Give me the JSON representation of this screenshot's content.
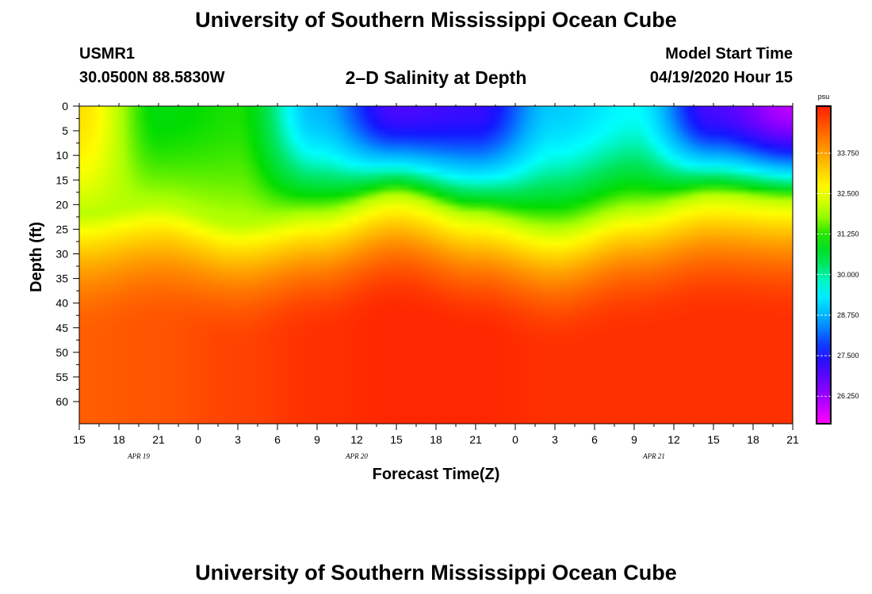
{
  "header": {
    "top_title": "University of Southern Mississippi Ocean Cube",
    "bottom_title": "University of Southern Mississippi Ocean Cube",
    "station_id": "USMR1",
    "station_coords": "30.0500N 88.5830W",
    "plot_title": "2–D Salinity at Depth",
    "model_start_label": "Model Start Time",
    "model_start_value": "04/19/2020 Hour 15"
  },
  "chart_data": {
    "type": "heatmap",
    "title": "2–D Salinity at Depth",
    "xlabel": "Forecast Time(Z)",
    "ylabel": "Depth (ft)",
    "x_unit": "hours since 04/19/2020 15Z",
    "xlim": [
      0,
      54
    ],
    "ylim": [
      0,
      64.5
    ],
    "y_ticks": [
      0,
      5,
      10,
      15,
      20,
      25,
      30,
      35,
      40,
      45,
      50,
      55,
      60
    ],
    "y_tick_labels": [
      "0",
      "5",
      "10",
      "15",
      "20",
      "25",
      "30",
      "35",
      "40",
      "45",
      "50",
      "55",
      "60"
    ],
    "x_ticks": [
      0,
      3,
      6,
      9,
      12,
      15,
      18,
      21,
      24,
      27,
      30,
      33,
      36,
      39,
      42,
      45,
      48,
      51,
      54
    ],
    "x_tick_labels": [
      "15",
      "18",
      "21",
      "0",
      "3",
      "6",
      "9",
      "12",
      "15",
      "18",
      "21",
      "0",
      "3",
      "6",
      "9",
      "12",
      "15",
      "18",
      "21"
    ],
    "date_labels": [
      {
        "x": 4.5,
        "text": "APR  19"
      },
      {
        "x": 21,
        "text": "APR  20"
      },
      {
        "x": 43.5,
        "text": "APR  21"
      }
    ],
    "colorbar": {
      "unit": "psu",
      "min": 25.4,
      "max": 35.2,
      "ticks": [
        26.25,
        27.5,
        28.75,
        30.0,
        31.25,
        32.5,
        33.75
      ],
      "tick_labels": [
        "26.250",
        "27.500",
        "28.750",
        "30.000",
        "31.250",
        "32.500",
        "33.750"
      ]
    },
    "time_hours": [
      0,
      6,
      12,
      18,
      24,
      30,
      36,
      42,
      48,
      54
    ],
    "halocline_depth_ft": [
      22,
      20,
      24,
      22,
      18,
      22,
      25,
      21,
      18,
      19
    ],
    "surface_salinity_psu": [
      33.0,
      31.0,
      31.2,
      28.8,
      27.0,
      27.2,
      29.0,
      29.5,
      27.0,
      26.0
    ],
    "bottom_salinity_psu": [
      34.5,
      34.6,
      34.8,
      35.0,
      35.1,
      35.1,
      35.0,
      35.0,
      35.0,
      35.0
    ]
  }
}
